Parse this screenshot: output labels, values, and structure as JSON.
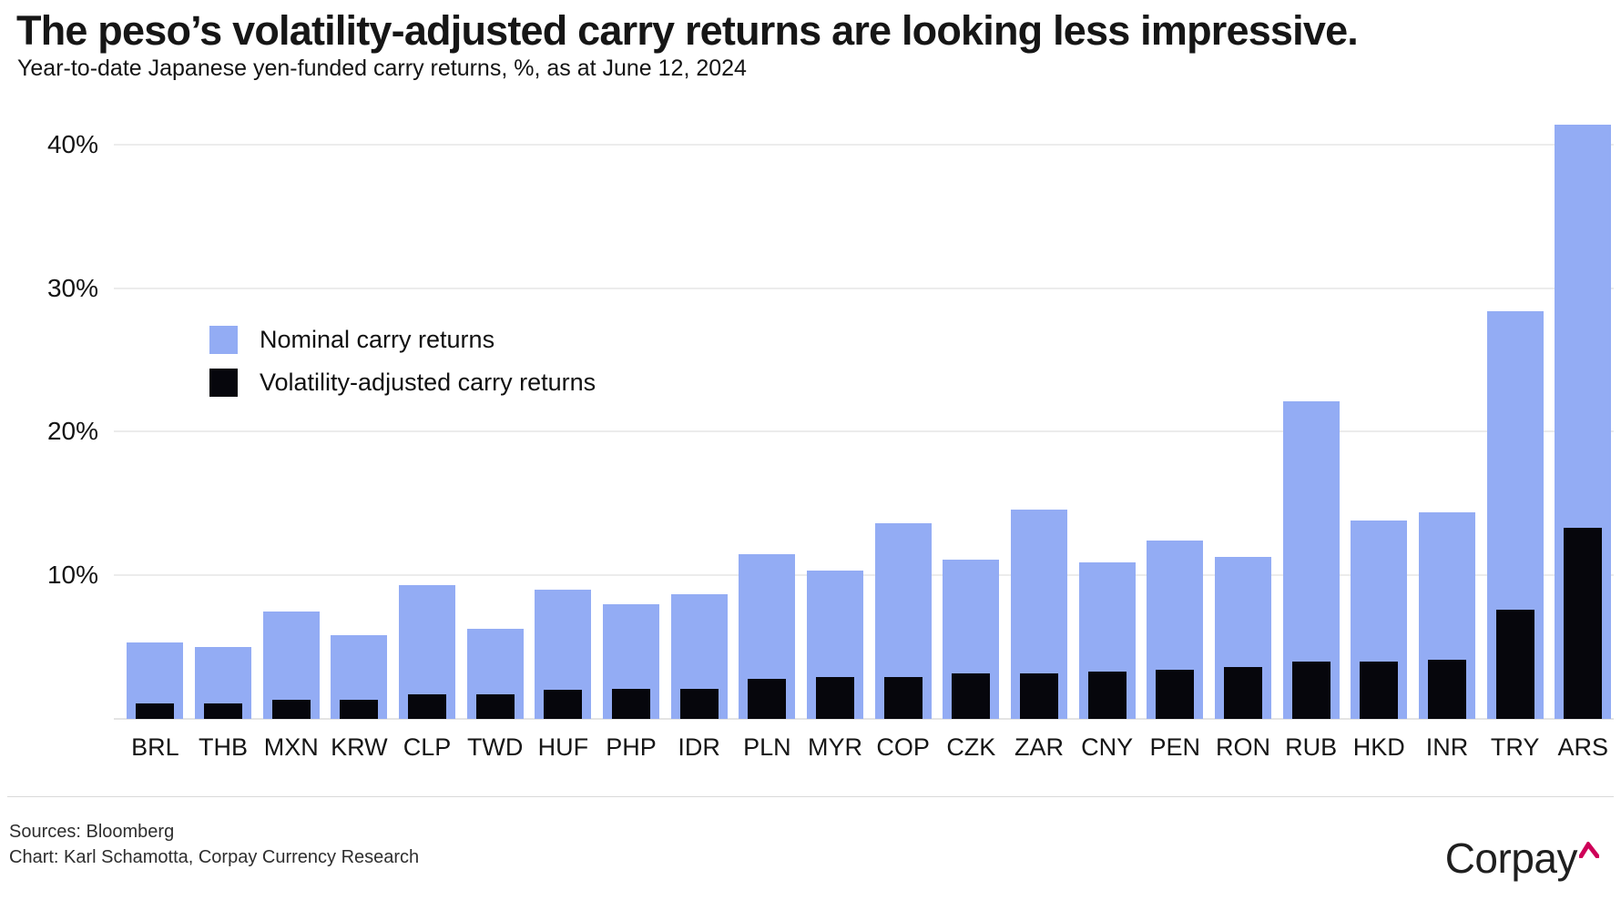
{
  "title": "The peso’s volatility-adjusted carry returns are looking less impressive.",
  "subtitle": "Year-to-date Japanese yen-funded carry returns, %, as at June 12, 2024",
  "footer": {
    "sources": "Sources: Bloomberg",
    "credit": "Chart: Karl Schamotta, Corpay Currency Research",
    "logo_text": "Corpay"
  },
  "colors": {
    "nominal": "#93acf4",
    "vol_adjusted": "#06060c",
    "gridline": "#ececec",
    "logo_caret": "#ce0058"
  },
  "chart_data": {
    "type": "bar",
    "title": "The peso’s volatility-adjusted carry returns are looking less impressive.",
    "subtitle": "Year-to-date Japanese yen-funded carry returns, %, as at June 12, 2024",
    "categories": [
      "BRL",
      "THB",
      "MXN",
      "KRW",
      "CLP",
      "TWD",
      "HUF",
      "PHP",
      "IDR",
      "PLN",
      "MYR",
      "COP",
      "CZK",
      "ZAR",
      "CNY",
      "PEN",
      "RON",
      "RUB",
      "HKD",
      "INR",
      "TRY",
      "ARS"
    ],
    "series": [
      {
        "name": "Nominal carry returns",
        "color": "#93acf4",
        "values": [
          5.3,
          5.0,
          7.5,
          5.8,
          9.3,
          6.3,
          9.0,
          8.0,
          8.7,
          11.5,
          10.3,
          13.6,
          11.1,
          14.6,
          10.9,
          12.4,
          11.3,
          22.1,
          13.8,
          14.4,
          28.4,
          41.4
        ]
      },
      {
        "name": "Volatility-adjusted carry returns",
        "color": "#06060c",
        "values": [
          1.1,
          1.1,
          1.3,
          1.3,
          1.7,
          1.7,
          2.0,
          2.1,
          2.1,
          2.8,
          2.9,
          2.9,
          3.2,
          3.2,
          3.3,
          3.4,
          3.6,
          4.0,
          4.0,
          4.1,
          7.6,
          13.3
        ]
      }
    ],
    "ylabel": "%",
    "yticks": [
      10,
      20,
      30,
      40
    ],
    "ytick_format": "percent",
    "ylim": [
      0,
      42
    ],
    "grid": true,
    "legend_position": "upper-left-inside",
    "bar_style": "overlaid (volatility-adjusted bar drawn narrower, centered over nominal bar)"
  }
}
